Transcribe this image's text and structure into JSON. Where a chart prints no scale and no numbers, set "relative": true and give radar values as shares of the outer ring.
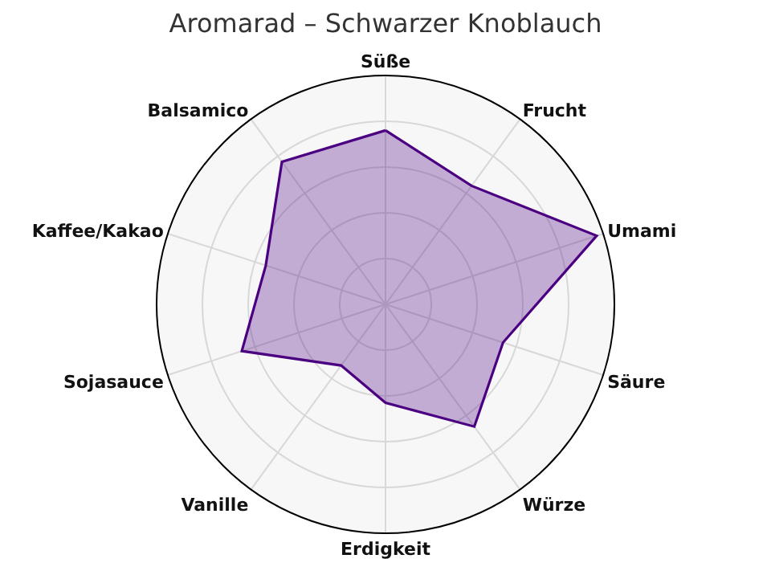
{
  "chart_data": {
    "type": "radar",
    "title": "Aromarad – Schwarzer Knoblauch",
    "relative": true,
    "grid": true,
    "categories": [
      "Süße",
      "Frucht",
      "Umami",
      "Säure",
      "Würze",
      "Erdigkeit",
      "Vanille",
      "Sojasauce",
      "Kaffee/Kakao",
      "Balsamico"
    ],
    "series": [
      {
        "color": "#4b0082",
        "values": [
          0.76,
          0.64,
          0.97,
          0.54,
          0.66,
          0.43,
          0.33,
          0.66,
          0.55,
          0.77
        ]
      }
    ]
  }
}
